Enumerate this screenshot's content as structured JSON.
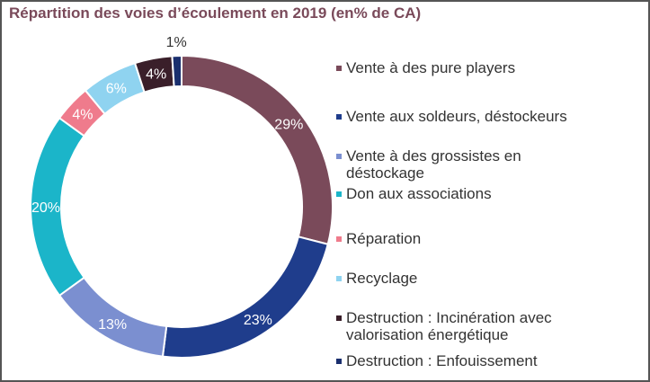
{
  "chart_data": {
    "type": "pie",
    "variant": "donut",
    "title": "Répartition des voies d’écoulement en 2019 (en% de CA)",
    "legend_position": "right",
    "categories": [
      "Vente à des pure players",
      "Vente aux soldeurs, déstockeurs",
      "Vente à des grossistes en déstockage",
      "Don aux associations",
      "Réparation",
      "Recyclage",
      "Destruction : Incinération avec valorisation énergétique",
      "Destruction : Enfouissement"
    ],
    "legend_lines": [
      [
        "Vente à des pure players"
      ],
      [
        "Vente aux soldeurs, déstockeurs"
      ],
      [
        "Vente à des grossistes en",
        "déstockage"
      ],
      [
        "Don aux associations"
      ],
      [
        "Réparation"
      ],
      [
        "Recyclage"
      ],
      [
        "Destruction : Incinération avec",
        "valorisation énergétique"
      ],
      [
        "Destruction : Enfouissement"
      ]
    ],
    "values": [
      29,
      23,
      13,
      20,
      4,
      6,
      4,
      1
    ],
    "labels": [
      "29%",
      "23%",
      "13%",
      "20%",
      "4%",
      "6%",
      "4%",
      "1%"
    ],
    "colors": [
      "#7a4a5a",
      "#1f3d8c",
      "#7b8fd0",
      "#1bb5c9",
      "#ef7b8c",
      "#8fd3f0",
      "#3a1f2a",
      "#1a2f6e"
    ],
    "label_colors": [
      "#ffffff",
      "#ffffff",
      "#ffffff",
      "#ffffff",
      "#ffffff",
      "#ffffff",
      "#ffffff",
      "#333333"
    ]
  }
}
